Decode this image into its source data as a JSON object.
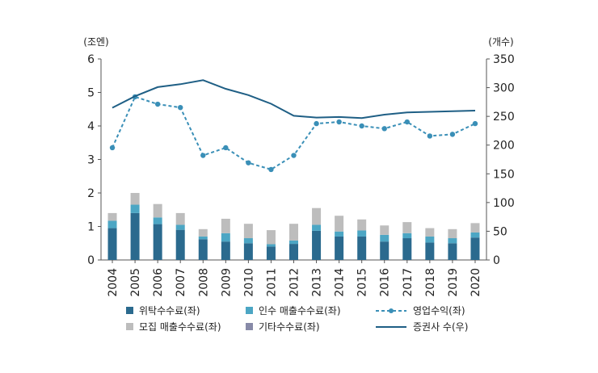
{
  "chart_data": {
    "type": "bar+line",
    "categories": [
      "2004",
      "2005",
      "2006",
      "2007",
      "2008",
      "2009",
      "2010",
      "2011",
      "2012",
      "2013",
      "2014",
      "2015",
      "2016",
      "2017",
      "2018",
      "2019",
      "2020"
    ],
    "left_axis": {
      "unit_label": "(조엔)",
      "ylim": [
        0,
        6
      ],
      "ticks": [
        "0",
        "1",
        "2",
        "3",
        "4",
        "5",
        "6"
      ]
    },
    "right_axis": {
      "unit_label": "(개수)",
      "ylim": [
        0,
        350
      ],
      "ticks": [
        "0",
        "50",
        "100",
        "150",
        "200",
        "250",
        "300",
        "350"
      ]
    },
    "stacked_bars": [
      {
        "name": "위탁수수료(좌)",
        "color": "#2b6a8e",
        "values": [
          0.95,
          1.4,
          1.07,
          0.9,
          0.62,
          0.55,
          0.5,
          0.4,
          0.48,
          0.87,
          0.7,
          0.7,
          0.55,
          0.65,
          0.52,
          0.5,
          0.67
        ]
      },
      {
        "name": "인수 매출수수료(좌)",
        "color": "#4ca6c4",
        "values": [
          0.22,
          0.25,
          0.2,
          0.15,
          0.08,
          0.25,
          0.15,
          0.07,
          0.1,
          0.18,
          0.15,
          0.18,
          0.2,
          0.15,
          0.18,
          0.15,
          0.15
        ]
      },
      {
        "name": "모집 매출수수료(좌)",
        "color": "#bdbdbd",
        "values": [
          0.23,
          0.35,
          0.4,
          0.35,
          0.22,
          0.43,
          0.43,
          0.42,
          0.5,
          0.5,
          0.47,
          0.33,
          0.28,
          0.33,
          0.25,
          0.27,
          0.28
        ]
      },
      {
        "name": "기타수수료(좌)",
        "color": "#888aa8",
        "values": [
          0,
          0,
          0,
          0,
          0,
          0,
          0,
          0,
          0,
          0,
          0,
          0,
          0,
          0,
          0,
          0,
          0
        ]
      }
    ],
    "lines": [
      {
        "name": "영업수익(좌)",
        "axis": "left",
        "style": "dashed-marker",
        "color": "#3a8fb7",
        "values": [
          3.35,
          4.87,
          4.65,
          4.55,
          3.12,
          3.35,
          2.9,
          2.7,
          3.12,
          4.07,
          4.12,
          4.0,
          3.92,
          4.12,
          3.7,
          3.75,
          4.07
        ]
      },
      {
        "name": "증권사 수(우)",
        "axis": "right",
        "style": "solid",
        "color": "#1f5f85",
        "values": [
          265,
          285,
          301,
          306,
          313,
          298,
          287,
          272,
          251,
          248,
          249,
          247,
          253,
          257,
          258,
          259,
          260
        ]
      }
    ]
  }
}
